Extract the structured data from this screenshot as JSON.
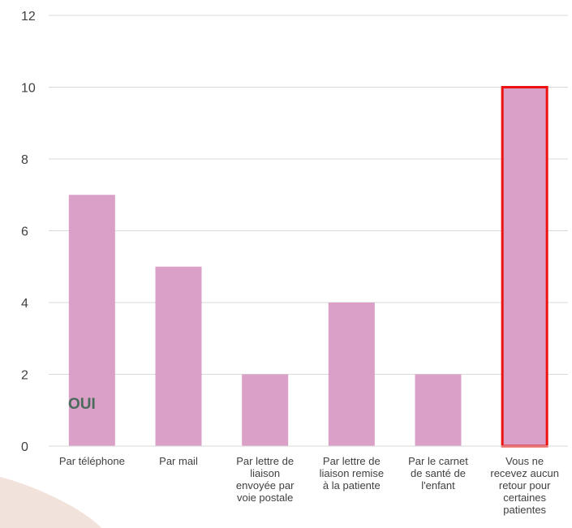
{
  "chart_data": {
    "type": "bar",
    "categories": [
      [
        "Par téléphone"
      ],
      [
        "Par mail"
      ],
      [
        "Par lettre de",
        "liaison",
        "envoyée par",
        "voie postale"
      ],
      [
        "Par lettre de",
        "liaison remise",
        "à la patiente"
      ],
      [
        "Par le carnet",
        "de santé de",
        "l'enfant"
      ],
      [
        "Vous ne",
        "recevez aucun",
        "retour pour",
        "certaines",
        "patientes"
      ]
    ],
    "values": [
      7,
      5,
      2,
      4,
      2,
      10
    ],
    "ylim": [
      0,
      12
    ],
    "yticks": [
      0,
      2,
      4,
      6,
      8,
      10,
      12
    ],
    "grid": true,
    "annotation": "OUI",
    "highlighted_index": 5,
    "colors": {
      "bar": "#dba0c7",
      "highlight_outline": "#ee1111",
      "grid": "#d9d9d9",
      "decor_arc": "#f2e2dc"
    }
  }
}
